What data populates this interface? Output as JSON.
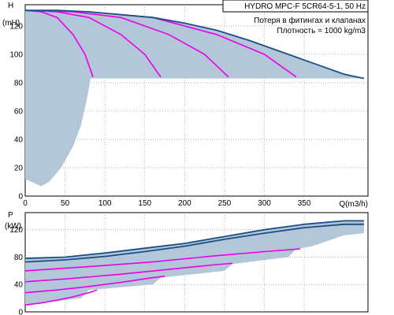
{
  "header": {
    "title": "HYDRO MPC-F 5CR64-5-1, 50 Hz",
    "note": "Потеря в фитингах и клапанах",
    "density": "Плотность = 1000 kg/m3"
  },
  "colors": {
    "envelope": "#b3c7d9",
    "max_curve": "#1a4f86",
    "staged_curve": "#e800e8",
    "frame": "#000000"
  },
  "chart_data": [
    {
      "type": "line",
      "id": "head",
      "ylabel_top": "H",
      "ylabel_unit": "(mH)",
      "xlabel": "Q(m3/h)",
      "xlim": [
        0,
        430
      ],
      "ylim": [
        0,
        135
      ],
      "xticks": [
        "0",
        "50",
        "100",
        "150",
        "200",
        "250",
        "300",
        "350"
      ],
      "xtick_values": [
        0,
        50,
        100,
        150,
        200,
        250,
        300,
        350
      ],
      "yticks": [
        "0",
        "20",
        "40",
        "60",
        "80",
        "100",
        "120"
      ],
      "ytick_values": [
        0,
        20,
        40,
        60,
        80,
        100,
        120
      ],
      "grid": true,
      "envelope": {
        "top": [
          [
            0,
            131
          ],
          [
            40,
            131
          ],
          [
            80,
            130
          ],
          [
            120,
            128
          ],
          [
            160,
            126
          ],
          [
            200,
            122
          ],
          [
            240,
            117
          ],
          [
            280,
            110
          ],
          [
            320,
            102
          ],
          [
            360,
            94
          ],
          [
            400,
            86
          ],
          [
            425,
            83
          ]
        ],
        "bottom": [
          [
            425,
            83
          ],
          [
            300,
            83
          ],
          [
            200,
            83
          ],
          [
            82,
            83
          ],
          [
            78,
            70
          ],
          [
            70,
            50
          ],
          [
            60,
            35
          ],
          [
            45,
            20
          ],
          [
            30,
            10
          ],
          [
            20,
            7
          ],
          [
            0,
            12
          ]
        ]
      },
      "series": [
        {
          "values": [
            [
              0,
              131
            ],
            [
              20,
              130
            ],
            [
              40,
              126
            ],
            [
              60,
              114
            ],
            [
              75,
              100
            ],
            [
              85,
              84
            ]
          ]
        },
        {
          "values": [
            [
              0,
              131
            ],
            [
              40,
              130
            ],
            [
              80,
              126
            ],
            [
              120,
              114
            ],
            [
              150,
              100
            ],
            [
              170,
              84
            ]
          ]
        },
        {
          "values": [
            [
              0,
              131
            ],
            [
              60,
              130
            ],
            [
              120,
              126
            ],
            [
              180,
              114
            ],
            [
              225,
              100
            ],
            [
              255,
              84
            ]
          ]
        },
        {
          "values": [
            [
              0,
              131
            ],
            [
              80,
              130
            ],
            [
              160,
              126
            ],
            [
              240,
              114
            ],
            [
              300,
              100
            ],
            [
              340,
              84
            ]
          ]
        },
        {
          "values": [
            [
              0,
              131
            ],
            [
              40,
              131
            ],
            [
              80,
              130
            ],
            [
              120,
              128
            ],
            [
              160,
              126
            ],
            [
              200,
              122
            ],
            [
              240,
              117
            ],
            [
              280,
              110
            ],
            [
              320,
              102
            ],
            [
              360,
              94
            ],
            [
              400,
              86
            ],
            [
              425,
              83
            ]
          ]
        }
      ]
    },
    {
      "type": "line",
      "id": "power",
      "ylabel_top": "P",
      "ylabel_unit": "(kW)",
      "xlim": [
        0,
        430
      ],
      "ylim": [
        0,
        145
      ],
      "yticks": [
        "0",
        "40",
        "80",
        "120"
      ],
      "ytick_values": [
        0,
        40,
        80,
        120
      ],
      "grid": true,
      "envelope": {
        "top": [
          [
            0,
            78
          ],
          [
            50,
            80
          ],
          [
            100,
            86
          ],
          [
            150,
            93
          ],
          [
            200,
            100
          ],
          [
            250,
            110
          ],
          [
            300,
            120
          ],
          [
            350,
            128
          ],
          [
            400,
            133
          ],
          [
            425,
            133
          ]
        ],
        "bottom": [
          [
            425,
            115
          ],
          [
            400,
            112
          ],
          [
            360,
            96
          ],
          [
            340,
            92
          ],
          [
            330,
            80
          ],
          [
            260,
            70
          ],
          [
            250,
            60
          ],
          [
            170,
            50
          ],
          [
            160,
            40
          ],
          [
            80,
            32
          ],
          [
            70,
            20
          ],
          [
            10,
            12
          ],
          [
            0,
            10
          ]
        ]
      },
      "series": [
        {
          "values": [
            [
              0,
              10
            ],
            [
              20,
              13
            ],
            [
              40,
              17
            ],
            [
              60,
              22
            ],
            [
              80,
              28
            ],
            [
              90,
              32
            ]
          ]
        },
        {
          "values": [
            [
              0,
              28
            ],
            [
              40,
              32
            ],
            [
              80,
              37
            ],
            [
              120,
              43
            ],
            [
              160,
              50
            ],
            [
              175,
              52
            ]
          ]
        },
        {
          "values": [
            [
              0,
              44
            ],
            [
              60,
              49
            ],
            [
              120,
              55
            ],
            [
              180,
              62
            ],
            [
              240,
              69
            ],
            [
              260,
              71
            ]
          ]
        },
        {
          "values": [
            [
              0,
              60
            ],
            [
              80,
              66
            ],
            [
              160,
              73
            ],
            [
              240,
              82
            ],
            [
              300,
              88
            ],
            [
              345,
              92
            ]
          ]
        },
        {
          "values": [
            [
              0,
              78
            ],
            [
              50,
              80
            ],
            [
              100,
              86
            ],
            [
              150,
              93
            ],
            [
              200,
              100
            ],
            [
              250,
              110
            ],
            [
              300,
              120
            ],
            [
              350,
              128
            ],
            [
              400,
              133
            ],
            [
              425,
              133
            ]
          ]
        },
        {
          "values": [
            [
              0,
              73
            ],
            [
              50,
              76
            ],
            [
              100,
              81
            ],
            [
              150,
              88
            ],
            [
              200,
              96
            ],
            [
              250,
              106
            ],
            [
              300,
              115
            ],
            [
              350,
              123
            ],
            [
              400,
              128
            ],
            [
              425,
              128
            ]
          ]
        }
      ]
    }
  ]
}
